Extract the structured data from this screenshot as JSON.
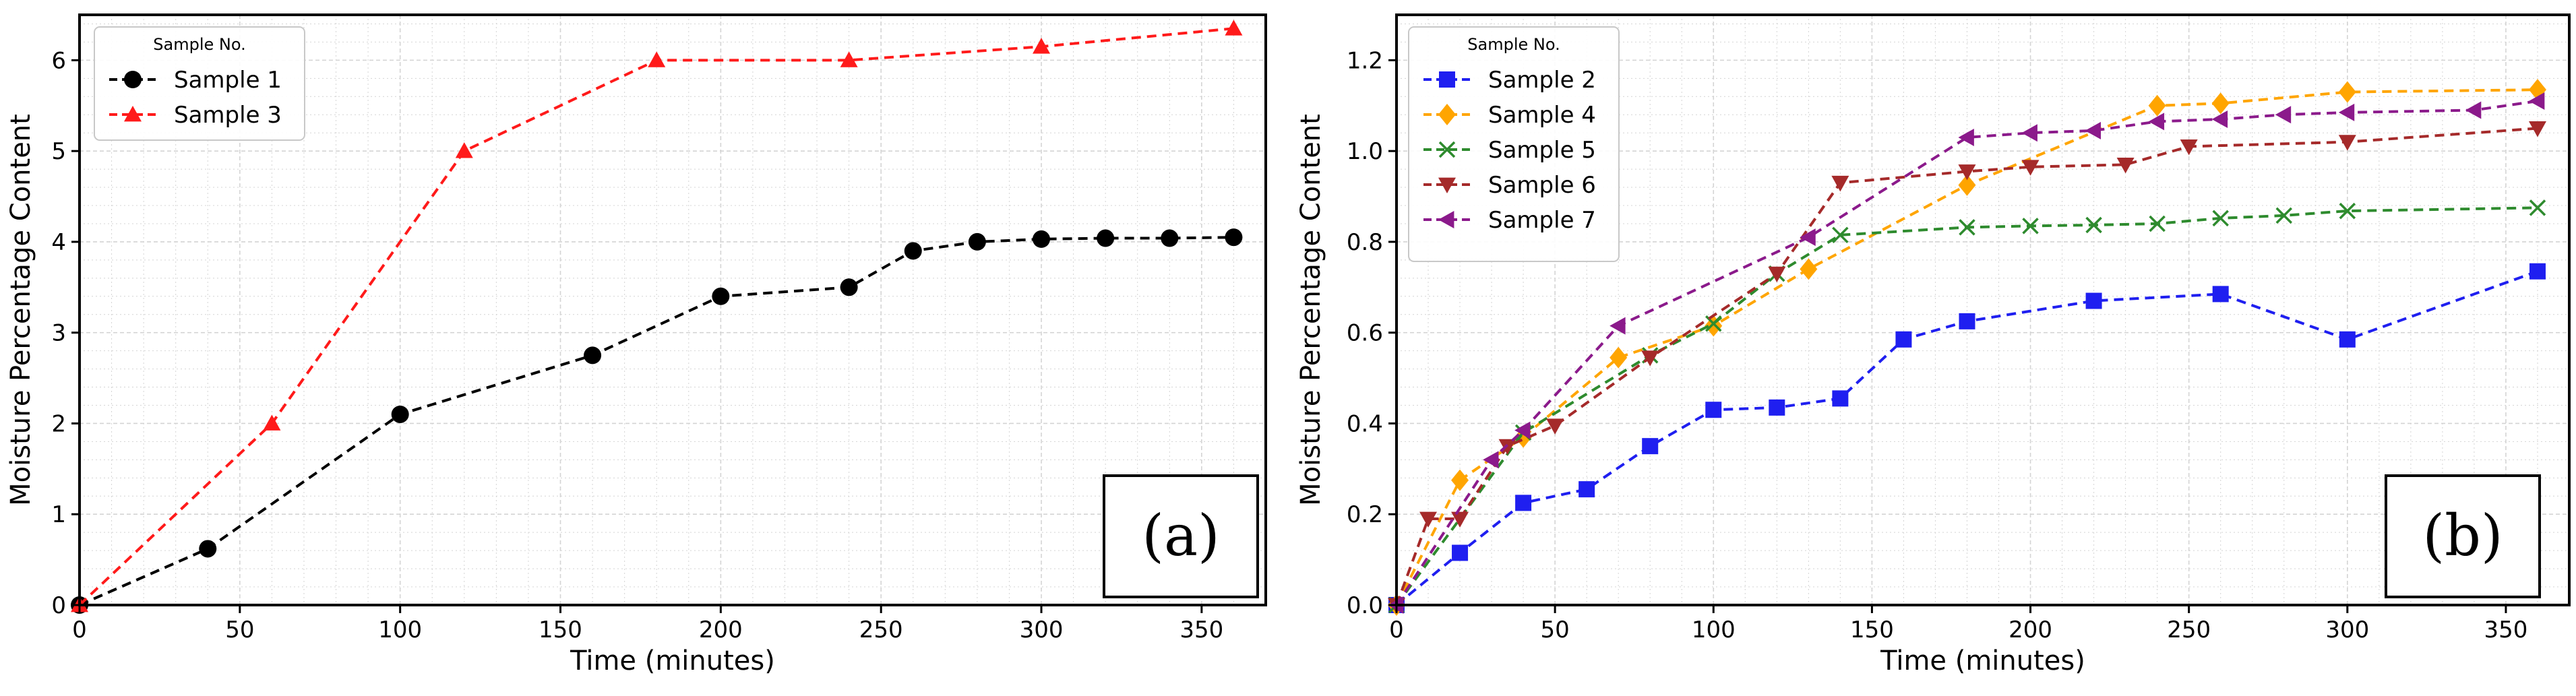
{
  "chart_data": [
    {
      "type": "line",
      "panel_label": "(a)",
      "xlabel": "Time (minutes)",
      "ylabel": "Moisture Percentage Content",
      "xlim": [
        0,
        370
      ],
      "ylim": [
        0,
        6.5
      ],
      "xticks": [
        0,
        50,
        100,
        150,
        200,
        250,
        300,
        350
      ],
      "yticks": [
        0,
        1,
        2,
        3,
        4,
        5,
        6
      ],
      "grid": true,
      "legend_title": "Sample No.",
      "legend_position": "upper-left",
      "series": [
        {
          "name": "Sample 1",
          "color": "#000000",
          "marker": "circle",
          "x": [
            0,
            40,
            100,
            160,
            200,
            240,
            260,
            280,
            300,
            320,
            340,
            360
          ],
          "y": [
            0,
            0.62,
            2.1,
            2.75,
            3.4,
            3.5,
            3.9,
            4.0,
            4.03,
            4.04,
            4.04,
            4.05
          ]
        },
        {
          "name": "Sample 3",
          "color": "#ff1a1a",
          "marker": "triangle-up",
          "x": [
            0,
            60,
            120,
            180,
            240,
            300,
            360
          ],
          "y": [
            0,
            2.0,
            5.0,
            6.0,
            6.0,
            6.15,
            6.35
          ]
        }
      ]
    },
    {
      "type": "line",
      "panel_label": "(b)",
      "xlabel": "Time (minutes)",
      "ylabel": "Moisture Percentage Content",
      "xlim": [
        0,
        370
      ],
      "ylim": [
        0,
        1.3
      ],
      "xticks": [
        0,
        50,
        100,
        150,
        200,
        250,
        300,
        350
      ],
      "yticks": [
        0.0,
        0.2,
        0.4,
        0.6,
        0.8,
        1.0,
        1.2
      ],
      "grid": true,
      "legend_title": "Sample No.",
      "legend_position": "upper-left",
      "series": [
        {
          "name": "Sample 2",
          "color": "#1f1ff0",
          "marker": "square",
          "x": [
            0,
            20,
            40,
            60,
            80,
            100,
            120,
            140,
            160,
            180,
            220,
            260,
            300,
            360
          ],
          "y": [
            0,
            0.115,
            0.225,
            0.255,
            0.35,
            0.43,
            0.435,
            0.455,
            0.585,
            0.625,
            0.67,
            0.685,
            0.585,
            0.735
          ]
        },
        {
          "name": "Sample 4",
          "color": "#ffa500",
          "marker": "diamond",
          "x": [
            0,
            20,
            40,
            70,
            100,
            130,
            180,
            240,
            260,
            300,
            360
          ],
          "y": [
            0,
            0.275,
            0.37,
            0.545,
            0.615,
            0.74,
            0.925,
            1.1,
            1.105,
            1.13,
            1.135
          ]
        },
        {
          "name": "Sample 5",
          "color": "#2e8b2e",
          "marker": "x",
          "x": [
            0,
            40,
            80,
            100,
            120,
            140,
            180,
            200,
            220,
            240,
            260,
            280,
            300,
            360
          ],
          "y": [
            0,
            0.38,
            0.55,
            0.62,
            0.73,
            0.815,
            0.832,
            0.835,
            0.837,
            0.84,
            0.852,
            0.858,
            0.868,
            0.875
          ]
        },
        {
          "name": "Sample 6",
          "color": "#a52a2a",
          "marker": "triangle-down",
          "x": [
            0,
            10,
            20,
            35,
            50,
            80,
            120,
            140,
            180,
            200,
            230,
            250,
            300,
            360
          ],
          "y": [
            0,
            0.19,
            0.19,
            0.35,
            0.395,
            0.545,
            0.73,
            0.93,
            0.955,
            0.965,
            0.97,
            1.01,
            1.02,
            1.05
          ]
        },
        {
          "name": "Sample 7",
          "color": "#8b1a8b",
          "marker": "triangle-left",
          "x": [
            0,
            30,
            40,
            70,
            130,
            180,
            200,
            220,
            240,
            260,
            280,
            300,
            340,
            360
          ],
          "y": [
            0,
            0.32,
            0.385,
            0.615,
            0.81,
            1.03,
            1.04,
            1.045,
            1.065,
            1.07,
            1.08,
            1.085,
            1.09,
            1.11
          ]
        }
      ]
    }
  ]
}
